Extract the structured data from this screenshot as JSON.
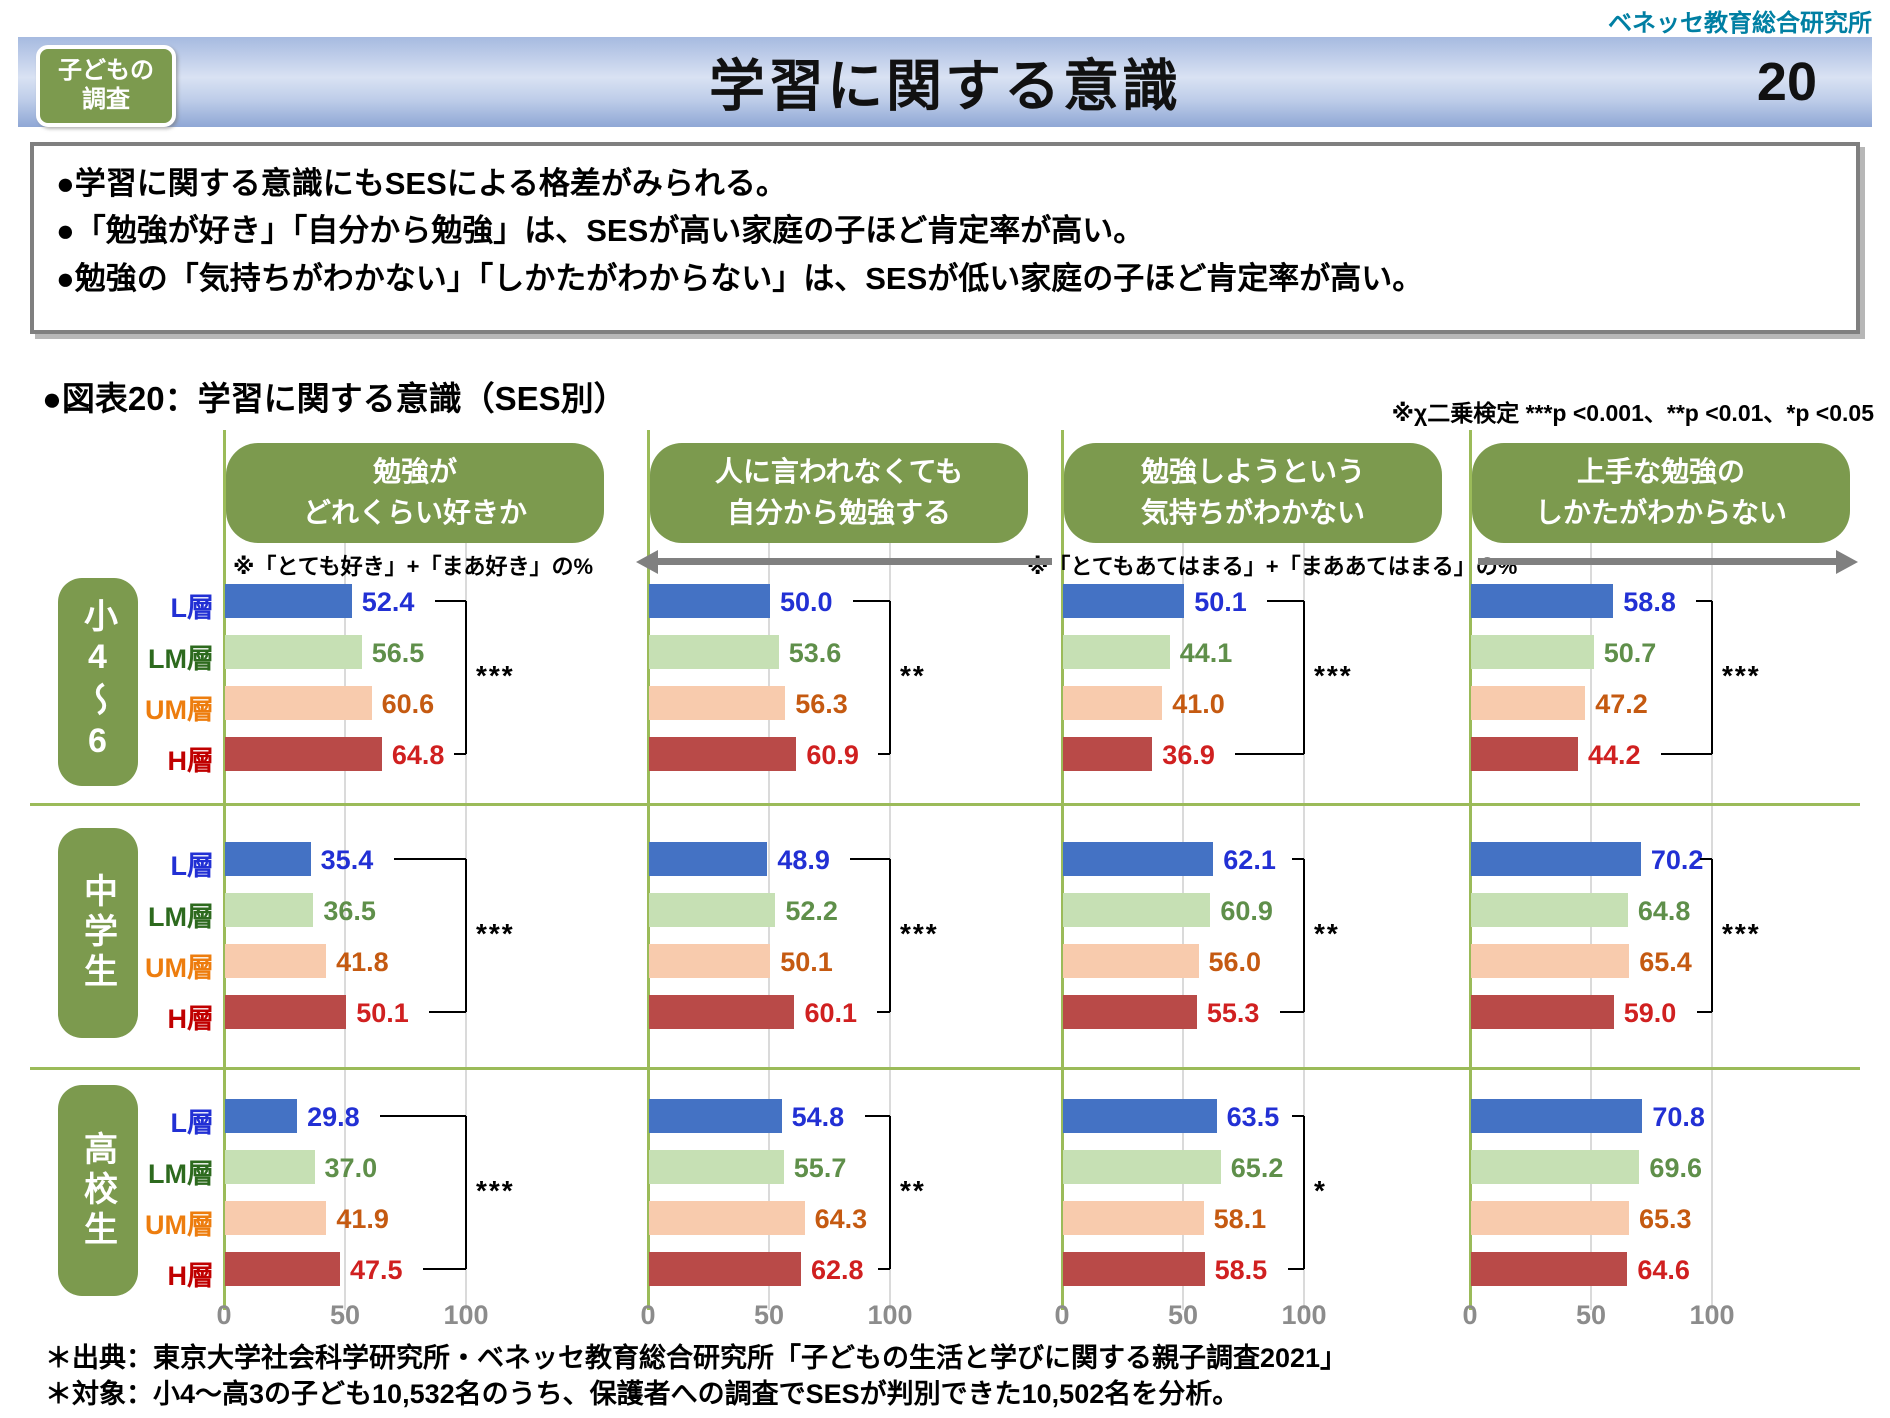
{
  "brand": "ベネッセ教育総合研究所",
  "header": {
    "badge_line1": "子どもの",
    "badge_line2": "調査",
    "title": "学習に関する意識",
    "page_number": "20"
  },
  "summary": {
    "bullets": [
      "●学習に関する意識にもSESによる格差がみられる。",
      "●「勉強が好き」「自分から勉強」は、SESが高い家庭の子ほど肯定率が高い。",
      "●勉強の「気持ちがわかない」「しかたがわからない」は、SESが低い家庭の子ほど肯定率が高い。"
    ]
  },
  "figure": {
    "title": "●図表20：学習に関する意識（SES別）",
    "note": "※χ二乗検定 ***p <0.001、**p <0.01、*p <0.05"
  },
  "chart_data": {
    "type": "bar",
    "orientation": "horizontal",
    "unit": "%",
    "xlim": [
      0,
      100
    ],
    "x_ticks": [
      "0",
      "50",
      "100"
    ],
    "grid": "vertical lines at 50 and 100",
    "ses_levels": [
      {
        "label": "L層",
        "label_color": "#2230D4",
        "bar_color": "#4472C4",
        "value_color": "#2230D4"
      },
      {
        "label": "LM層",
        "label_color": "#2D6A1E",
        "bar_color": "#C6E0B4",
        "value_color": "#5F8F4A"
      },
      {
        "label": "UM層",
        "label_color": "#ED7D0E",
        "bar_color": "#F8CBAD",
        "value_color": "#C55A11"
      },
      {
        "label": "H層",
        "label_color": "#C00000",
        "bar_color": "#B94A48",
        "value_color": "#D02020"
      }
    ],
    "questions": [
      {
        "title_line1": "勉強が",
        "title_line2": "どれくらい好きか",
        "note": "※「とても好き」+「まあ好き」の%"
      },
      {
        "title_line1": "人に言われなくても",
        "title_line2": "自分から勉強する",
        "note": ""
      },
      {
        "title_line1": "勉強しようという",
        "title_line2": "気持ちがわかない",
        "note": "※「とてもあてはまる」+「まああてはまる」の%"
      },
      {
        "title_line1": "上手な勉強の",
        "title_line2": "しかたがわからない",
        "note": ""
      }
    ],
    "groups": [
      {
        "label": "小4〜6",
        "values": [
          [
            "52.4",
            "56.5",
            "60.6",
            "64.8"
          ],
          [
            "50.0",
            "53.6",
            "56.3",
            "60.9"
          ],
          [
            "50.1",
            "44.1",
            "41.0",
            "36.9"
          ],
          [
            "58.8",
            "50.7",
            "47.2",
            "44.2"
          ]
        ],
        "significance": [
          "***",
          "**",
          "***",
          "***"
        ]
      },
      {
        "label": "中学生",
        "values": [
          [
            "35.4",
            "36.5",
            "41.8",
            "50.1"
          ],
          [
            "48.9",
            "52.2",
            "50.1",
            "60.1"
          ],
          [
            "62.1",
            "60.9",
            "56.0",
            "55.3"
          ],
          [
            "70.2",
            "64.8",
            "65.4",
            "59.0"
          ]
        ],
        "significance": [
          "***",
          "***",
          "**",
          "***"
        ]
      },
      {
        "label": "高校生",
        "values": [
          [
            "29.8",
            "37.0",
            "41.9",
            "47.5"
          ],
          [
            "54.8",
            "55.7",
            "64.3",
            "62.8"
          ],
          [
            "63.5",
            "65.2",
            "58.1",
            "58.5"
          ],
          [
            "70.8",
            "69.6",
            "65.3",
            "64.6"
          ]
        ],
        "significance": [
          "***",
          "**",
          "*",
          null
        ]
      }
    ]
  },
  "footer": {
    "lines": [
      "＊出典：東京大学社会科学研究所・ベネッセ教育総合研究所「子どもの生活と学びに関する親子調査2021」",
      "＊対象：小4～高3の子ども10,532名のうち、保護者への調査でSESが判別できた10,502名を分析。"
    ]
  }
}
